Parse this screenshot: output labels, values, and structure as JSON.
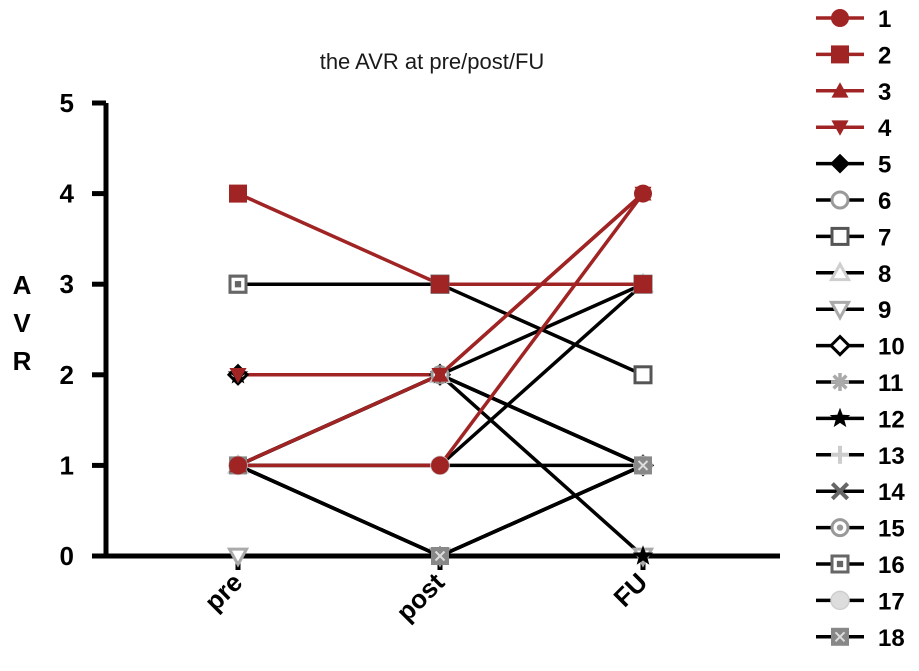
{
  "chart_data": {
    "type": "line",
    "title": "the AVR at pre/post/FU",
    "ylabel": "AVR",
    "xlabel": "",
    "categories": [
      "pre",
      "post",
      "FU"
    ],
    "ylim": [
      0,
      5
    ],
    "yticks": [
      0,
      1,
      2,
      3,
      4,
      5
    ],
    "grid": false,
    "legend_position": "right",
    "series": [
      {
        "name": "1",
        "values": [
          1,
          1,
          4
        ],
        "color": "#a02424",
        "marker": "circle"
      },
      {
        "name": "2",
        "values": [
          4,
          3,
          3
        ],
        "color": "#a02424",
        "marker": "square"
      },
      {
        "name": "3",
        "values": [
          1,
          2,
          4
        ],
        "color": "#a02424",
        "marker": "triangle-up"
      },
      {
        "name": "4",
        "values": [
          2,
          2,
          4
        ],
        "color": "#a02424",
        "marker": "triangle-down"
      },
      {
        "name": "5",
        "values": [
          1,
          0,
          1
        ],
        "color": "#000000",
        "marker": "diamond"
      },
      {
        "name": "6",
        "values": [
          1,
          2,
          1
        ],
        "color": "#9a9a9a",
        "marker": "circle-open"
      },
      {
        "name": "7",
        "values": [
          3,
          3,
          2
        ],
        "color": "#555555",
        "marker": "square-open"
      },
      {
        "name": "8",
        "values": [
          1,
          2,
          3
        ],
        "color": "#cfcfcf",
        "marker": "triangle-up-open"
      },
      {
        "name": "9",
        "values": [
          0,
          0,
          0
        ],
        "color": "#aaaaaa",
        "marker": "triangle-down-open"
      },
      {
        "name": "10",
        "values": [
          2,
          2,
          1
        ],
        "color": "#000000",
        "marker": "diamond-open"
      },
      {
        "name": "11",
        "values": [
          1,
          1,
          3
        ],
        "color": "#aaaaaa",
        "marker": "asterisk"
      },
      {
        "name": "12",
        "values": [
          2,
          2,
          0
        ],
        "color": "#000000",
        "marker": "star"
      },
      {
        "name": "13",
        "values": [
          1,
          0,
          1
        ],
        "color": "#cccccc",
        "marker": "plus"
      },
      {
        "name": "14",
        "values": [
          1,
          0,
          1
        ],
        "color": "#666666",
        "marker": "x"
      },
      {
        "name": "15",
        "values": [
          1,
          2,
          1
        ],
        "color": "#999999",
        "marker": "circle-dot"
      },
      {
        "name": "16",
        "values": [
          3,
          3,
          3
        ],
        "color": "#666666",
        "marker": "square-dot"
      },
      {
        "name": "17",
        "values": [
          1,
          1,
          1
        ],
        "color": "#dddddd",
        "marker": "circle-light"
      },
      {
        "name": "18",
        "values": [
          1,
          0,
          1
        ],
        "color": "#888888",
        "marker": "square-x"
      }
    ]
  }
}
